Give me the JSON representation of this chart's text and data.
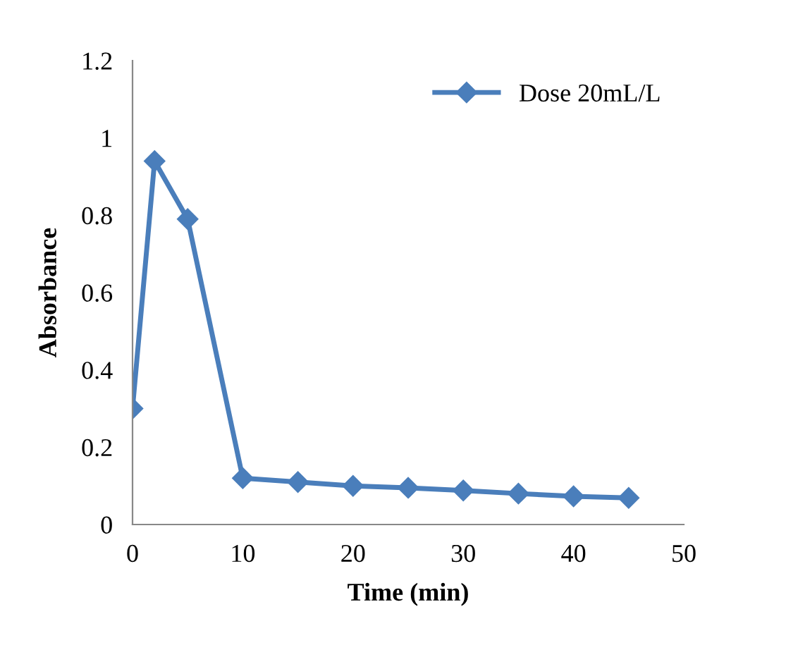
{
  "chart_data": {
    "type": "line",
    "xlabel": "Time (min)",
    "ylabel": "Absorbance",
    "x": [
      0,
      2,
      5,
      10,
      15,
      20,
      25,
      30,
      35,
      40,
      45
    ],
    "series": [
      {
        "name": "Dose 20mL/L",
        "color": "#4a7ebb",
        "values": [
          0.3,
          0.94,
          0.79,
          0.12,
          0.11,
          0.1,
          0.095,
          0.088,
          0.08,
          0.073,
          0.069
        ]
      }
    ],
    "xlim": [
      0,
      50
    ],
    "xticks": [
      0,
      10,
      20,
      30,
      40,
      50
    ],
    "ylim": [
      0,
      1.2
    ],
    "yticks": [
      0,
      0.2,
      0.4,
      0.6,
      0.8,
      1,
      1.2
    ],
    "grid": false,
    "legend": "top right",
    "marker": "diamond",
    "line_style": "solid"
  }
}
